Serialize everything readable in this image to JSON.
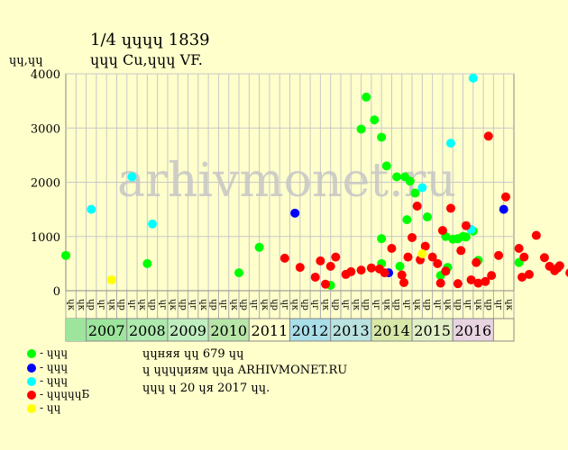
{
  "header": {
    "title": "1/4 ɥɥɥɥ 1839",
    "subtitle": "ɥɥɥ Cu,ɥɥɥ VF.",
    "y_unit": "ɥɥ,ɥɥ"
  },
  "watermark": "arhivmonet.ru",
  "legend": [
    {
      "label": "- ɥɥɥ",
      "color": "#00ff00"
    },
    {
      "label": "- ɥɥɥ",
      "color": "#0000ff"
    },
    {
      "label": "- ɥɥɥ",
      "color": "#00ffff"
    },
    {
      "label": "- ɥɥɥɥɥБ",
      "color": "#ff0000"
    },
    {
      "label": "- ɥɥ",
      "color": "#ffff00"
    }
  ],
  "footer": {
    "line1": "ɥɥняя ɥɥ 679 ɥɥ",
    "line2": "ɥ ɥɥɥɥиям ɥɥа ARHIVMONET.RU",
    "line3": "ɥɥɥ ɥ 20 ɥя 2017 ɥɥ."
  },
  "chart_data": {
    "type": "scatter",
    "ylim": [
      0,
      4000
    ],
    "yticks": [
      0,
      1000,
      2000,
      3000,
      4000
    ],
    "grid": true,
    "quarter_labels": [
      "ɥк",
      "ɥк",
      "ɥр",
      "ɥг",
      "ɥк",
      "ɥр",
      "ɥг",
      "ɥк",
      "ɥр",
      "ɥг",
      "ɥк",
      "ɥр",
      "ɥг",
      "ɥк",
      "ɥр",
      "ɥг",
      "ɥк",
      "ɥр",
      "ɥг",
      "ɥк",
      "ɥр",
      "ɥг",
      "ɥк",
      "ɥр",
      "ɥг",
      "ɥк",
      "ɥр",
      "ɥг",
      "ɥк",
      "ɥр",
      "ɥг",
      "ɥк",
      "ɥр",
      "ɥг",
      "ɥк",
      "ɥр",
      "ɥг",
      "ɥк",
      "ɥр",
      "ɥг",
      "ɥк",
      "ɥр",
      "ɥг",
      "ɥк"
    ],
    "years": [
      {
        "label": "2007",
        "color": "#9de59d"
      },
      {
        "label": "2008",
        "color": "#aeeaae"
      },
      {
        "label": "2009",
        "color": "#c0eec0"
      },
      {
        "label": "2010",
        "color": "#b8e6a8"
      },
      {
        "label": "2011",
        "color": "#ffffcc"
      },
      {
        "label": "2012",
        "color": "#a9dde8"
      },
      {
        "label": "2013",
        "color": "#b9e2e0"
      },
      {
        "label": "2014",
        "color": "#d8e8a8"
      },
      {
        "label": "2015",
        "color": "#e2f0c8"
      },
      {
        "label": "2016",
        "color": "#e8d4e0"
      }
    ],
    "series": [
      {
        "name": "ɥɥɥ",
        "color": "#00ff00",
        "points": [
          [
            0,
            650
          ],
          [
            8,
            500
          ],
          [
            17,
            330
          ],
          [
            19,
            800
          ],
          [
            26,
            100
          ],
          [
            29,
            2980
          ],
          [
            29.5,
            3570
          ],
          [
            30.3,
            3150
          ],
          [
            31,
            2830
          ],
          [
            31,
            500
          ],
          [
            31,
            960
          ],
          [
            31.5,
            2300
          ],
          [
            32.5,
            2100
          ],
          [
            32.8,
            450
          ],
          [
            33.3,
            2100
          ],
          [
            33.5,
            1310
          ],
          [
            33.8,
            2020
          ],
          [
            34.3,
            1800
          ],
          [
            34.5,
            1560
          ],
          [
            35.5,
            1360
          ],
          [
            36.8,
            280
          ],
          [
            37.3,
            1000
          ],
          [
            37.5,
            430
          ],
          [
            38,
            950
          ],
          [
            38.5,
            960
          ],
          [
            39,
            1000
          ],
          [
            39.3,
            990
          ],
          [
            40,
            1100
          ],
          [
            40.5,
            560
          ],
          [
            44.5,
            520
          ]
        ]
      },
      {
        "name": "ɥɥɥ",
        "color": "#0000ff",
        "points": [
          [
            22.5,
            1430
          ],
          [
            31.7,
            330
          ],
          [
            43,
            1500
          ]
        ]
      },
      {
        "name": "ɥɥɥ",
        "color": "#00ffff",
        "points": [
          [
            2.5,
            1500
          ],
          [
            6.5,
            2100
          ],
          [
            8.5,
            1230
          ],
          [
            35,
            1900
          ],
          [
            37.8,
            2720
          ],
          [
            39.8,
            1130
          ],
          [
            40,
            3920
          ]
        ]
      },
      {
        "name": "ɥɥɥɥɥБ",
        "color": "#ff0000",
        "points": [
          [
            21.5,
            600
          ],
          [
            23,
            430
          ],
          [
            24.5,
            250
          ],
          [
            25,
            550
          ],
          [
            25.5,
            120
          ],
          [
            26,
            450
          ],
          [
            26.5,
            620
          ],
          [
            27.5,
            300
          ],
          [
            28,
            350
          ],
          [
            29,
            380
          ],
          [
            30,
            420
          ],
          [
            30.8,
            400
          ],
          [
            31.3,
            330
          ],
          [
            32,
            780
          ],
          [
            33,
            290
          ],
          [
            33.2,
            150
          ],
          [
            33.6,
            620
          ],
          [
            34,
            980
          ],
          [
            34.5,
            1560
          ],
          [
            34.8,
            570
          ],
          [
            35.3,
            820
          ],
          [
            36,
            620
          ],
          [
            36.5,
            500
          ],
          [
            36.8,
            140
          ],
          [
            37,
            1110
          ],
          [
            37.3,
            360
          ],
          [
            37.8,
            1520
          ],
          [
            38.5,
            130
          ],
          [
            38.8,
            740
          ],
          [
            39.3,
            1200
          ],
          [
            39.8,
            200
          ],
          [
            40.3,
            520
          ],
          [
            40.5,
            140
          ],
          [
            41.2,
            170
          ],
          [
            41.5,
            2850
          ],
          [
            41.8,
            280
          ],
          [
            42.5,
            650
          ],
          [
            43.2,
            1730
          ],
          [
            44.5,
            780
          ],
          [
            44.8,
            250
          ],
          [
            45,
            620
          ],
          [
            45.5,
            300
          ],
          [
            46.2,
            1020
          ],
          [
            47,
            610
          ],
          [
            47.5,
            450
          ],
          [
            48,
            370
          ],
          [
            48.3,
            420
          ],
          [
            48.5,
            460
          ],
          [
            49.5,
            330
          ],
          [
            49.8,
            400
          ],
          [
            50.5,
            780
          ],
          [
            50.8,
            430
          ],
          [
            51.3,
            350
          ],
          [
            51.5,
            1010
          ],
          [
            51.8,
            130
          ],
          [
            52.3,
            380
          ],
          [
            52.5,
            430
          ],
          [
            52.8,
            1160
          ],
          [
            53.5,
            610
          ],
          [
            53.8,
            560
          ],
          [
            55.5,
            550
          ],
          [
            56.5,
            1220
          ],
          [
            58,
            400
          ]
        ]
      },
      {
        "name": "ɥɥ",
        "color": "#ffff00",
        "points": [
          [
            4.5,
            200
          ],
          [
            35,
            680
          ]
        ]
      }
    ]
  }
}
